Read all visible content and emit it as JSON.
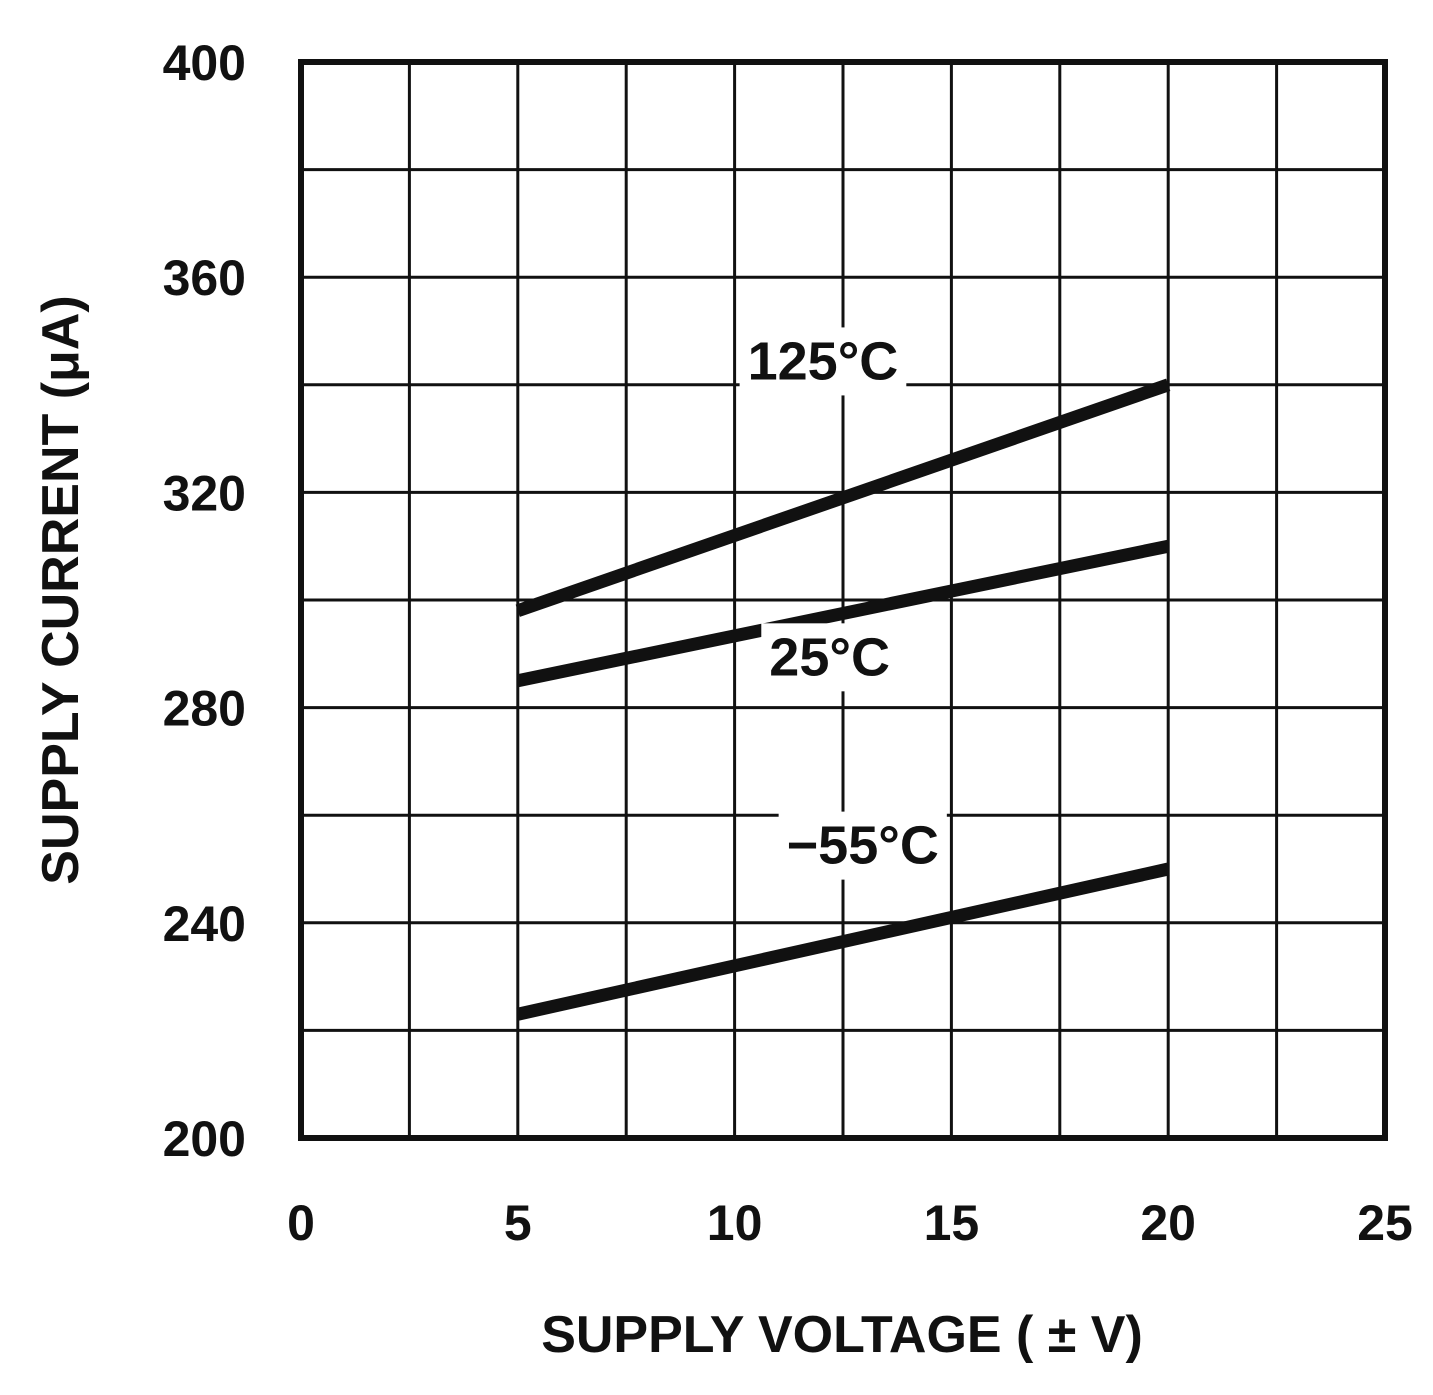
{
  "chart_data": {
    "type": "line",
    "xlabel": "SUPPLY VOLTAGE ( ± V)",
    "ylabel": "SUPPLY CURRENT (μA)",
    "xlim": [
      0,
      25
    ],
    "ylim": [
      200,
      400
    ],
    "x_ticks": [
      0,
      5,
      10,
      15,
      20,
      25
    ],
    "x_tick_labels": [
      "0",
      "5",
      "10",
      "15",
      "20",
      "25"
    ],
    "y_ticks": [
      200,
      240,
      280,
      320,
      360,
      400
    ],
    "y_tick_labels": [
      "200",
      "240",
      "280",
      "320",
      "360",
      "400"
    ],
    "x_grid_step": 2.5,
    "y_grid_step": 20,
    "grid": true,
    "legend": "inline labels",
    "series": [
      {
        "name": "125°C",
        "x": [
          5,
          20
        ],
        "y": [
          298,
          340
        ],
        "label_at": [
          10.3,
          341
        ]
      },
      {
        "name": "25°C",
        "x": [
          5,
          20
        ],
        "y": [
          285,
          310
        ],
        "label_at": [
          10.8,
          286
        ]
      },
      {
        "name": "−55°C",
        "x": [
          5,
          20
        ],
        "y": [
          223,
          250
        ],
        "label_at": [
          11.2,
          251
        ]
      }
    ]
  }
}
